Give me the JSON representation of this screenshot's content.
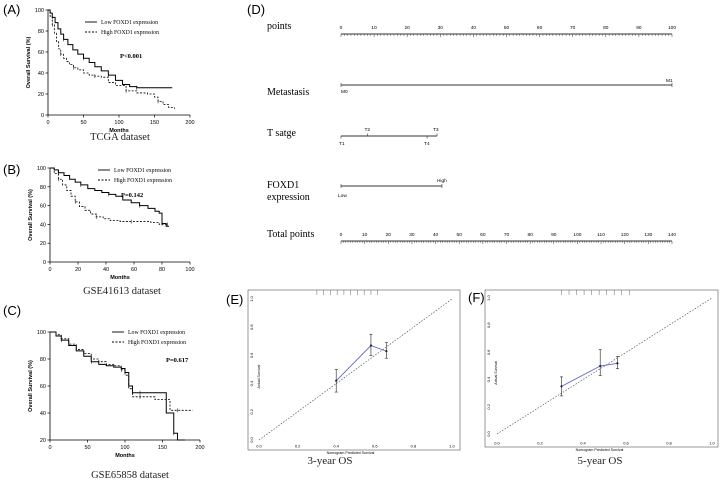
{
  "figure": {
    "km": [
      {
        "label": "(A)",
        "caption": "TCGA dataset",
        "ylabel": "Overall Survival (%)",
        "xlabel": "Months",
        "xticks": [
          "0",
          "50",
          "100",
          "150",
          "200"
        ],
        "yticks": [
          "0",
          "20",
          "40",
          "60",
          "80",
          "100"
        ],
        "legend": [
          "Low FOXD1 expression",
          "High FOXD1 expression"
        ],
        "pvalue": "P<0.001"
      },
      {
        "label": "(B)",
        "caption": "GSE41613 dataset",
        "ylabel": "Overall Survival (%)",
        "xlabel": "Months",
        "xticks": [
          "0",
          "20",
          "40",
          "60",
          "80",
          "100"
        ],
        "yticks": [
          "0",
          "20",
          "40",
          "60",
          "80",
          "100"
        ],
        "legend": [
          "Low FOXD1 expression",
          "High FOXD1 expression"
        ],
        "pvalue": "P=0.142"
      },
      {
        "label": "(C)",
        "caption": "GSE65858 dataset",
        "ylabel": "Overall Survival (%)",
        "xlabel": "Months",
        "xticks": [
          "0",
          "50",
          "100",
          "150",
          "200"
        ],
        "yticks": [
          "20",
          "40",
          "60",
          "80",
          "100"
        ],
        "legend": [
          "Low FOXD1 expression",
          "High FOXD1 expression"
        ],
        "pvalue": "P=0.617"
      }
    ],
    "nomogram": {
      "label": "(D)",
      "rows": [
        {
          "name": "points",
          "ticks": [
            "0",
            "10",
            "20",
            "30",
            "40",
            "50",
            "60",
            "70",
            "80",
            "90",
            "100"
          ]
        },
        {
          "name": "Metastasis",
          "left": "M0",
          "right": "M1"
        },
        {
          "name": "T satge",
          "top_left": "T2",
          "top_right": "T3",
          "bottom_left": "T1",
          "bottom_right": "T4"
        },
        {
          "name": "FOXD1",
          "name2": "expression",
          "left": "Low",
          "right": "High"
        },
        {
          "name": "Total points",
          "ticks": [
            "0",
            "10",
            "20",
            "30",
            "40",
            "50",
            "60",
            "70",
            "80",
            "90",
            "100",
            "110",
            "120",
            "130",
            "140"
          ]
        }
      ]
    },
    "calibration": [
      {
        "label": "(E)",
        "caption": "3-year OS",
        "xlabel": "Nomogram Predicted Survival",
        "ylabel": "Actual Survival",
        "xticks": [
          "0.0",
          "0.2",
          "0.4",
          "0.6",
          "0.8",
          "1.0"
        ],
        "yticks": [
          "0.0",
          "0.2",
          "0.4",
          "0.6",
          "0.8",
          "1.0"
        ]
      },
      {
        "label": "(F)",
        "caption": "5-year OS",
        "xlabel": "Nomogram Predicted Survival",
        "ylabel": "Actual Survival",
        "xticks": [
          "0.0",
          "0.2",
          "0.4",
          "0.6",
          "0.8",
          "1.0"
        ],
        "yticks": [
          "0.0",
          "0.2",
          "0.4",
          "0.6",
          "0.8",
          "1.0"
        ]
      }
    ]
  },
  "chart_data": [
    {
      "type": "line",
      "title": "TCGA dataset",
      "xlabel": "Months",
      "ylabel": "Overall Survival (%)",
      "xlim": [
        0,
        200
      ],
      "ylim": [
        0,
        100
      ],
      "series": [
        {
          "name": "Low FOXD1 expression",
          "x": [
            0,
            3,
            6,
            10,
            14,
            18,
            22,
            28,
            35,
            42,
            50,
            58,
            66,
            75,
            85,
            95,
            105,
            115,
            125,
            140,
            160,
            175
          ],
          "y": [
            100,
            97,
            93,
            88,
            82,
            77,
            72,
            67,
            62,
            58,
            54,
            50,
            46,
            42,
            38,
            33,
            29,
            27,
            26,
            26,
            26,
            26
          ]
        },
        {
          "name": "High FOXD1 expression",
          "x": [
            0,
            3,
            6,
            9,
            12,
            15,
            18,
            22,
            26,
            30,
            36,
            42,
            50,
            58,
            66,
            75,
            85,
            95,
            110,
            125,
            140,
            150,
            155,
            162,
            170,
            178
          ],
          "y": [
            100,
            94,
            86,
            78,
            70,
            63,
            58,
            54,
            51,
            48,
            45,
            43,
            40,
            38,
            37,
            36,
            31,
            28,
            23,
            21,
            20,
            17,
            13,
            10,
            7,
            6
          ]
        }
      ]
    },
    {
      "type": "line",
      "title": "GSE41613 dataset",
      "xlabel": "Months",
      "ylabel": "Overall Survival (%)",
      "xlim": [
        0,
        100
      ],
      "ylim": [
        0,
        100
      ],
      "series": [
        {
          "name": "Low FOXD1 expression",
          "x": [
            0,
            3,
            6,
            10,
            14,
            18,
            22,
            27,
            32,
            37,
            42,
            47,
            52,
            58,
            64,
            70,
            75,
            78,
            80,
            83,
            85
          ],
          "y": [
            100,
            98,
            95,
            92,
            88,
            85,
            82,
            78,
            76,
            74,
            72,
            70,
            66,
            63,
            60,
            57,
            54,
            52,
            41,
            38,
            38
          ]
        },
        {
          "name": "High FOXD1 expression",
          "x": [
            0,
            3,
            6,
            9,
            12,
            15,
            18,
            21,
            25,
            29,
            33,
            38,
            43,
            50,
            58,
            66,
            72,
            78,
            84
          ],
          "y": [
            100,
            94,
            88,
            82,
            76,
            70,
            64,
            59,
            55,
            51,
            48,
            46,
            44,
            43,
            43,
            43,
            42,
            40,
            40
          ]
        }
      ]
    },
    {
      "type": "line",
      "title": "GSE65858 dataset",
      "xlabel": "Months",
      "ylabel": "Overall Survival (%)",
      "xlim": [
        0,
        200
      ],
      "ylim": [
        20,
        100
      ],
      "series": [
        {
          "name": "Low FOXD1 expression",
          "x": [
            0,
            8,
            15,
            25,
            35,
            45,
            55,
            65,
            75,
            85,
            95,
            100,
            105,
            110,
            120,
            140,
            150,
            155,
            165,
            170,
            180
          ],
          "y": [
            100,
            97,
            94,
            90,
            86,
            82,
            78,
            76,
            75,
            74,
            73,
            70,
            60,
            55,
            55,
            55,
            55,
            40,
            25,
            20,
            20
          ]
        },
        {
          "name": "High FOXD1 expression",
          "x": [
            0,
            8,
            15,
            25,
            35,
            45,
            55,
            65,
            75,
            85,
            95,
            100,
            105,
            110,
            120,
            140,
            150,
            160,
            170,
            180,
            190
          ],
          "y": [
            100,
            98,
            95,
            91,
            87,
            84,
            80,
            78,
            76,
            75,
            72,
            68,
            58,
            52,
            52,
            50,
            50,
            42,
            42,
            42,
            42
          ]
        }
      ]
    },
    {
      "type": "line",
      "title": "3-year OS",
      "xlabel": "Nomogram Predicted Survival",
      "ylabel": "Actual Survival",
      "xlim": [
        0,
        1
      ],
      "ylim": [
        0,
        1
      ],
      "series": [
        {
          "name": "Calibration",
          "x": [
            0.4,
            0.58,
            0.66
          ],
          "y": [
            0.42,
            0.67,
            0.63
          ],
          "ci_low": [
            0.34,
            0.6,
            0.58
          ],
          "ci_high": [
            0.5,
            0.75,
            0.69
          ]
        },
        {
          "name": "Ideal",
          "x": [
            0,
            1
          ],
          "y": [
            0,
            1
          ]
        }
      ]
    },
    {
      "type": "line",
      "title": "5-year OS",
      "xlabel": "Nomogram Predicted Survival",
      "ylabel": "Actual Survival",
      "xlim": [
        0,
        1
      ],
      "ylim": [
        0,
        1
      ],
      "series": [
        {
          "name": "Calibration",
          "x": [
            0.3,
            0.48,
            0.56
          ],
          "y": [
            0.35,
            0.5,
            0.52
          ],
          "ci_low": [
            0.28,
            0.43,
            0.48
          ],
          "ci_high": [
            0.42,
            0.62,
            0.57
          ]
        },
        {
          "name": "Ideal",
          "x": [
            0,
            1
          ],
          "y": [
            0,
            1
          ]
        }
      ]
    }
  ]
}
